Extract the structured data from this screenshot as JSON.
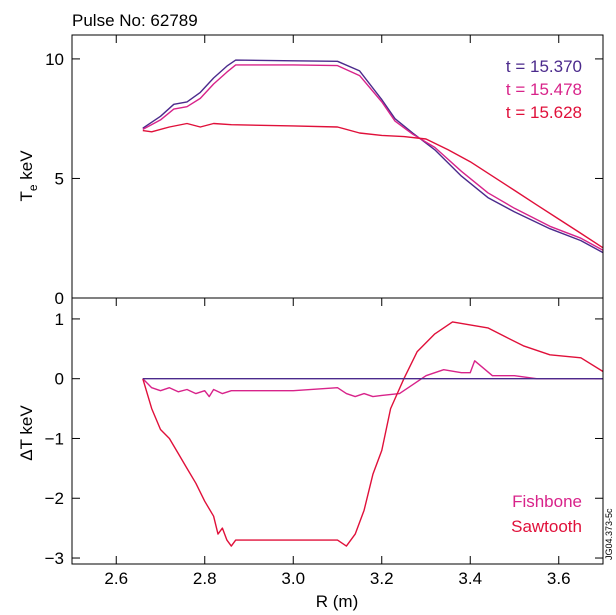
{
  "header": {
    "pulse_label": "Pulse No: 62789"
  },
  "footer": {
    "figure_code": "JG04.373-5c"
  },
  "colors": {
    "purple": "#4b2a8c",
    "magenta": "#d8238a",
    "red": "#e0103a"
  },
  "chart_data": [
    {
      "type": "line",
      "ylabel_main": "T",
      "ylabel_sub": "e",
      "ylabel_unit": " keV",
      "ylim": [
        0,
        11
      ],
      "xlim": [
        2.5,
        3.7
      ],
      "yticks": [
        "0",
        "5",
        "10"
      ],
      "legend": [
        "t = 15.370",
        "t = 15.478",
        "t = 15.628"
      ],
      "series": [
        {
          "name": "t = 15.370",
          "color": "#4b2a8c",
          "points": [
            [
              2.66,
              7.1
            ],
            [
              2.7,
              7.6
            ],
            [
              2.73,
              8.1
            ],
            [
              2.76,
              8.2
            ],
            [
              2.79,
              8.6
            ],
            [
              2.82,
              9.2
            ],
            [
              2.85,
              9.7
            ],
            [
              2.87,
              9.95
            ],
            [
              3.0,
              9.92
            ],
            [
              3.1,
              9.9
            ],
            [
              3.15,
              9.5
            ],
            [
              3.2,
              8.3
            ],
            [
              3.23,
              7.5
            ],
            [
              3.27,
              6.9
            ],
            [
              3.32,
              6.2
            ],
            [
              3.38,
              5.1
            ],
            [
              3.44,
              4.2
            ],
            [
              3.5,
              3.6
            ],
            [
              3.58,
              2.9
            ],
            [
              3.65,
              2.4
            ],
            [
              3.7,
              1.9
            ]
          ]
        },
        {
          "name": "t = 15.478",
          "color": "#d8238a",
          "points": [
            [
              2.66,
              7.05
            ],
            [
              2.7,
              7.45
            ],
            [
              2.73,
              7.9
            ],
            [
              2.76,
              8.0
            ],
            [
              2.79,
              8.35
            ],
            [
              2.82,
              8.95
            ],
            [
              2.85,
              9.45
            ],
            [
              2.87,
              9.75
            ],
            [
              3.0,
              9.75
            ],
            [
              3.1,
              9.72
            ],
            [
              3.15,
              9.3
            ],
            [
              3.2,
              8.2
            ],
            [
              3.23,
              7.4
            ],
            [
              3.27,
              6.85
            ],
            [
              3.32,
              6.3
            ],
            [
              3.38,
              5.3
            ],
            [
              3.44,
              4.4
            ],
            [
              3.5,
              3.75
            ],
            [
              3.58,
              3.0
            ],
            [
              3.65,
              2.5
            ],
            [
              3.7,
              2.0
            ]
          ]
        },
        {
          "name": "t = 15.628",
          "color": "#e0103a",
          "points": [
            [
              2.66,
              7.0
            ],
            [
              2.68,
              6.95
            ],
            [
              2.72,
              7.15
            ],
            [
              2.76,
              7.3
            ],
            [
              2.79,
              7.15
            ],
            [
              2.82,
              7.3
            ],
            [
              2.86,
              7.25
            ],
            [
              3.0,
              7.2
            ],
            [
              3.1,
              7.15
            ],
            [
              3.15,
              6.9
            ],
            [
              3.2,
              6.8
            ],
            [
              3.25,
              6.75
            ],
            [
              3.3,
              6.65
            ],
            [
              3.35,
              6.2
            ],
            [
              3.4,
              5.7
            ],
            [
              3.45,
              5.1
            ],
            [
              3.5,
              4.5
            ],
            [
              3.55,
              3.9
            ],
            [
              3.6,
              3.3
            ],
            [
              3.65,
              2.7
            ],
            [
              3.7,
              2.1
            ]
          ]
        }
      ]
    },
    {
      "type": "line",
      "ylabel": "ΔT keV",
      "xlabel": "R (m)",
      "ylim": [
        -3.1,
        1.35
      ],
      "xlim": [
        2.5,
        3.7
      ],
      "yticks": [
        "1",
        "0",
        "−1",
        "−2",
        "−3"
      ],
      "xticks": [
        "2.6",
        "2.8",
        "3.0",
        "3.2",
        "3.4",
        "3.6"
      ],
      "legend": [
        "Fishbone",
        "Sawtooth"
      ],
      "series": [
        {
          "name": "Fishbone",
          "color": "#d8238a",
          "points": [
            [
              2.66,
              0.0
            ],
            [
              2.68,
              -0.15
            ],
            [
              2.7,
              -0.2
            ],
            [
              2.72,
              -0.15
            ],
            [
              2.74,
              -0.22
            ],
            [
              2.76,
              -0.18
            ],
            [
              2.78,
              -0.25
            ],
            [
              2.8,
              -0.2
            ],
            [
              2.81,
              -0.3
            ],
            [
              2.82,
              -0.18
            ],
            [
              2.84,
              -0.25
            ],
            [
              2.86,
              -0.2
            ],
            [
              3.0,
              -0.2
            ],
            [
              3.1,
              -0.15
            ],
            [
              3.12,
              -0.25
            ],
            [
              3.14,
              -0.3
            ],
            [
              3.16,
              -0.25
            ],
            [
              3.18,
              -0.3
            ],
            [
              3.2,
              -0.28
            ],
            [
              3.24,
              -0.25
            ],
            [
              3.27,
              -0.1
            ],
            [
              3.3,
              0.05
            ],
            [
              3.34,
              0.15
            ],
            [
              3.38,
              0.1
            ],
            [
              3.4,
              0.1
            ],
            [
              3.41,
              0.3
            ],
            [
              3.45,
              0.05
            ],
            [
              3.5,
              0.05
            ],
            [
              3.55,
              0.0
            ],
            [
              3.7,
              0.0
            ]
          ]
        },
        {
          "name": "Sawtooth",
          "color": "#e0103a",
          "points": [
            [
              2.66,
              0.0
            ],
            [
              2.68,
              -0.5
            ],
            [
              2.7,
              -0.85
            ],
            [
              2.72,
              -1.0
            ],
            [
              2.74,
              -1.25
            ],
            [
              2.76,
              -1.5
            ],
            [
              2.78,
              -1.75
            ],
            [
              2.8,
              -2.05
            ],
            [
              2.82,
              -2.3
            ],
            [
              2.83,
              -2.6
            ],
            [
              2.84,
              -2.5
            ],
            [
              2.85,
              -2.7
            ],
            [
              2.86,
              -2.8
            ],
            [
              2.87,
              -2.7
            ],
            [
              3.0,
              -2.7
            ],
            [
              3.1,
              -2.7
            ],
            [
              3.12,
              -2.8
            ],
            [
              3.14,
              -2.6
            ],
            [
              3.16,
              -2.2
            ],
            [
              3.18,
              -1.6
            ],
            [
              3.2,
              -1.2
            ],
            [
              3.22,
              -0.5
            ],
            [
              3.25,
              0.0
            ],
            [
              3.28,
              0.45
            ],
            [
              3.32,
              0.75
            ],
            [
              3.36,
              0.95
            ],
            [
              3.4,
              0.9
            ],
            [
              3.44,
              0.85
            ],
            [
              3.48,
              0.7
            ],
            [
              3.52,
              0.55
            ],
            [
              3.58,
              0.4
            ],
            [
              3.65,
              0.35
            ],
            [
              3.7,
              0.12
            ]
          ]
        },
        {
          "name": "",
          "color": "#4b2a8c",
          "points": [
            [
              2.66,
              0.0
            ],
            [
              3.7,
              0.0
            ]
          ]
        }
      ]
    }
  ]
}
